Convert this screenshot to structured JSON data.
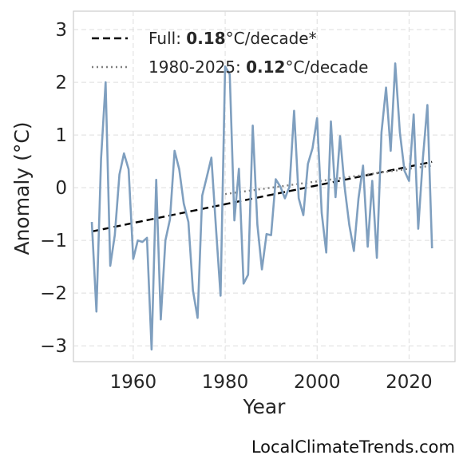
{
  "chart_data": {
    "type": "line",
    "xlabel": "Year",
    "ylabel": "Anomaly (°C)",
    "xlim": [
      1947,
      2030
    ],
    "ylim": [
      -3.3,
      3.35
    ],
    "xticks": [
      1960,
      1980,
      2000,
      2020
    ],
    "yticks": [
      -3,
      -2,
      -1,
      0,
      1,
      2,
      3
    ],
    "grid": true,
    "legend_position": "top-left",
    "colors": {
      "series": "#7f9fbf",
      "full_trend": "#000000",
      "recent_trend": "#808080"
    },
    "x": [
      1951,
      1952,
      1953,
      1954,
      1955,
      1956,
      1957,
      1958,
      1959,
      1960,
      1961,
      1962,
      1963,
      1964,
      1965,
      1966,
      1967,
      1968,
      1969,
      1970,
      1971,
      1972,
      1973,
      1974,
      1975,
      1976,
      1977,
      1978,
      1979,
      1980,
      1981,
      1982,
      1983,
      1984,
      1985,
      1986,
      1987,
      1988,
      1989,
      1990,
      1991,
      1992,
      1993,
      1994,
      1995,
      1996,
      1997,
      1998,
      1999,
      2000,
      2001,
      2002,
      2003,
      2004,
      2005,
      2006,
      2007,
      2008,
      2009,
      2010,
      2011,
      2012,
      2013,
      2014,
      2015,
      2016,
      2017,
      2018,
      2019,
      2020,
      2021,
      2022,
      2023,
      2024,
      2025
    ],
    "series": [
      {
        "values": [
          -0.65,
          -2.35,
          0.55,
          2.0,
          -1.48,
          -0.9,
          0.25,
          0.65,
          0.35,
          -1.35,
          -1.0,
          -1.03,
          -0.95,
          -3.07,
          0.15,
          -2.5,
          -1.0,
          -0.6,
          0.7,
          0.35,
          -0.3,
          -0.65,
          -1.95,
          -2.47,
          -0.15,
          0.2,
          0.57,
          -0.75,
          -2.05,
          2.3,
          2.15,
          -0.62,
          0.36,
          -1.82,
          -1.65,
          1.18,
          -0.7,
          -1.55,
          -0.88,
          -0.9,
          0.16,
          0.02,
          -0.2,
          0.02,
          1.46,
          -0.2,
          -0.52,
          0.45,
          0.75,
          1.32,
          -0.48,
          -1.23,
          1.26,
          -0.18,
          0.98,
          0.0,
          -0.7,
          -1.2,
          -0.2,
          0.42,
          -1.12,
          0.13,
          -1.33,
          1.05,
          1.9,
          0.7,
          2.36,
          1.05,
          0.32,
          0.13,
          1.39,
          -0.78,
          0.55,
          1.57,
          -1.15
        ]
      }
    ],
    "trends": [
      {
        "label_prefix": "Full: ",
        "label_value": "0.18",
        "label_suffix": "°C/decade*",
        "style": "dashed",
        "start": [
          1951,
          -0.83
        ],
        "end": [
          2025,
          0.49
        ]
      },
      {
        "label_prefix": "1980-2025: ",
        "label_value": "0.12",
        "label_suffix": "°C/decade",
        "style": "dotted",
        "start": [
          1980,
          -0.12
        ],
        "end": [
          2025,
          0.42
        ]
      }
    ]
  },
  "credit": "LocalClimateTrends.com"
}
